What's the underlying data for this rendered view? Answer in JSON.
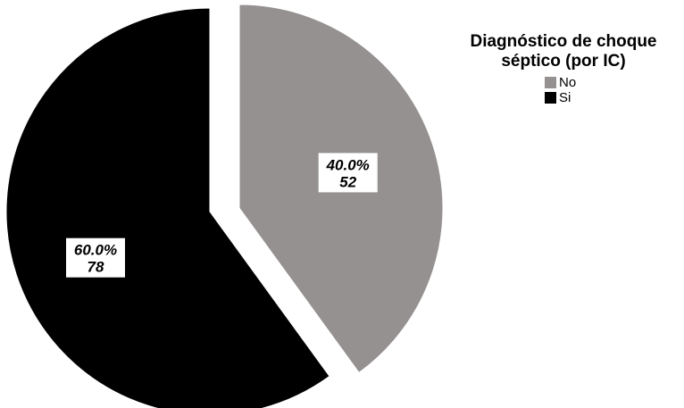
{
  "chart_data": {
    "type": "pie",
    "legend_title": "Diagnóstico de choque séptico (por IC)",
    "legend_position": "top-right",
    "slices": [
      {
        "name": "No",
        "value": 52,
        "percent_label": "40.0%",
        "count_label": "52",
        "color": "#959190"
      },
      {
        "name": "Si",
        "value": 78,
        "percent_label": "60.0%",
        "count_label": "78",
        "color": "#000000"
      }
    ]
  }
}
